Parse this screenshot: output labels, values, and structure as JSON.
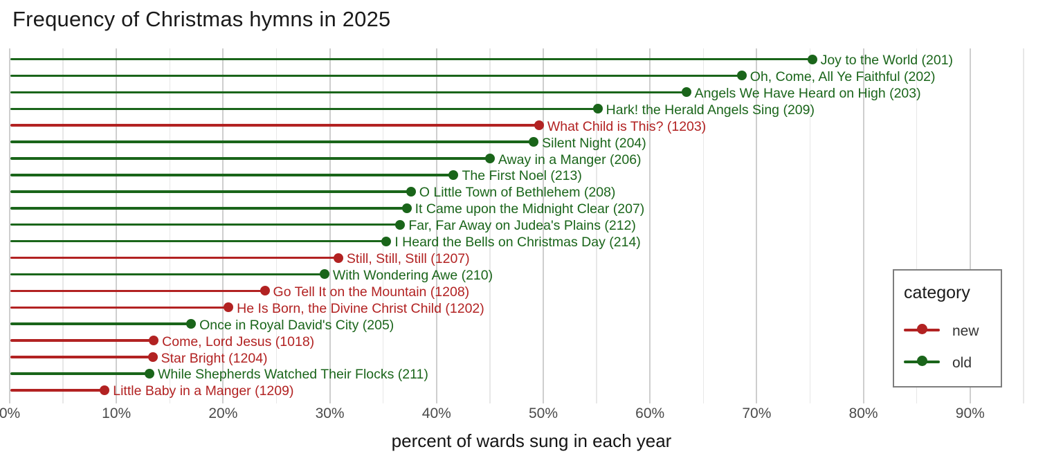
{
  "title": "Frequency of Christmas hymns in 2025",
  "chart_data": {
    "type": "bar",
    "variant": "lollipop-horizontal",
    "title": "Frequency of Christmas hymns in 2025",
    "xlabel": "percent of wards sung in each year",
    "ylabel": "",
    "xlim": [
      0,
      97
    ],
    "x_tick_values": [
      0,
      10,
      20,
      30,
      40,
      50,
      60,
      70,
      80,
      90
    ],
    "x_tick_labels": [
      "0%",
      "10%",
      "20%",
      "30%",
      "40%",
      "50%",
      "60%",
      "70%",
      "80%",
      "90%"
    ],
    "grid": "vertical major every 10%, minor every 5%",
    "legend": {
      "title": "category",
      "position": "right",
      "entries": [
        {
          "label": "new",
          "color": "#b22222"
        },
        {
          "label": "old",
          "color": "#1a651a"
        }
      ]
    },
    "colors": {
      "new": "#b22222",
      "old": "#1a651a"
    },
    "items": [
      {
        "label": "Joy to the World (201)",
        "category": "old",
        "value": 75.2
      },
      {
        "label": "Oh, Come, All Ye Faithful (202)",
        "category": "old",
        "value": 68.6
      },
      {
        "label": "Angels We Have Heard on High (203)",
        "category": "old",
        "value": 63.4
      },
      {
        "label": "Hark! the Herald Angels Sing (209)",
        "category": "old",
        "value": 55.1
      },
      {
        "label": "What Child is This? (1203)",
        "category": "new",
        "value": 49.6
      },
      {
        "label": "Silent Night (204)",
        "category": "old",
        "value": 49.1
      },
      {
        "label": "Away in a Manger (206)",
        "category": "old",
        "value": 45.0
      },
      {
        "label": "The First Noel (213)",
        "category": "old",
        "value": 41.6
      },
      {
        "label": "O Little Town of Bethlehem (208)",
        "category": "old",
        "value": 37.6
      },
      {
        "label": "It Came upon the Midnight Clear (207)",
        "category": "old",
        "value": 37.2
      },
      {
        "label": "Far, Far Away on Judea's Plains (212)",
        "category": "old",
        "value": 36.6
      },
      {
        "label": "I Heard the Bells on Christmas Day (214)",
        "category": "old",
        "value": 35.3
      },
      {
        "label": "Still, Still, Still (1207)",
        "category": "new",
        "value": 30.8
      },
      {
        "label": "With Wondering Awe (210)",
        "category": "old",
        "value": 29.5
      },
      {
        "label": "Go Tell It on the Mountain (1208)",
        "category": "new",
        "value": 23.9
      },
      {
        "label": "He Is Born, the Divine Christ Child (1202)",
        "category": "new",
        "value": 20.5
      },
      {
        "label": "Once in Royal David's City (205)",
        "category": "old",
        "value": 17.0
      },
      {
        "label": "Come, Lord Jesus (1018)",
        "category": "new",
        "value": 13.5
      },
      {
        "label": "Star Bright (1204)",
        "category": "new",
        "value": 13.4
      },
      {
        "label": "While Shepherds Watched Their Flocks (211)",
        "category": "old",
        "value": 13.1
      },
      {
        "label": "Little Baby in a Manger (1209)",
        "category": "new",
        "value": 8.9
      }
    ]
  }
}
